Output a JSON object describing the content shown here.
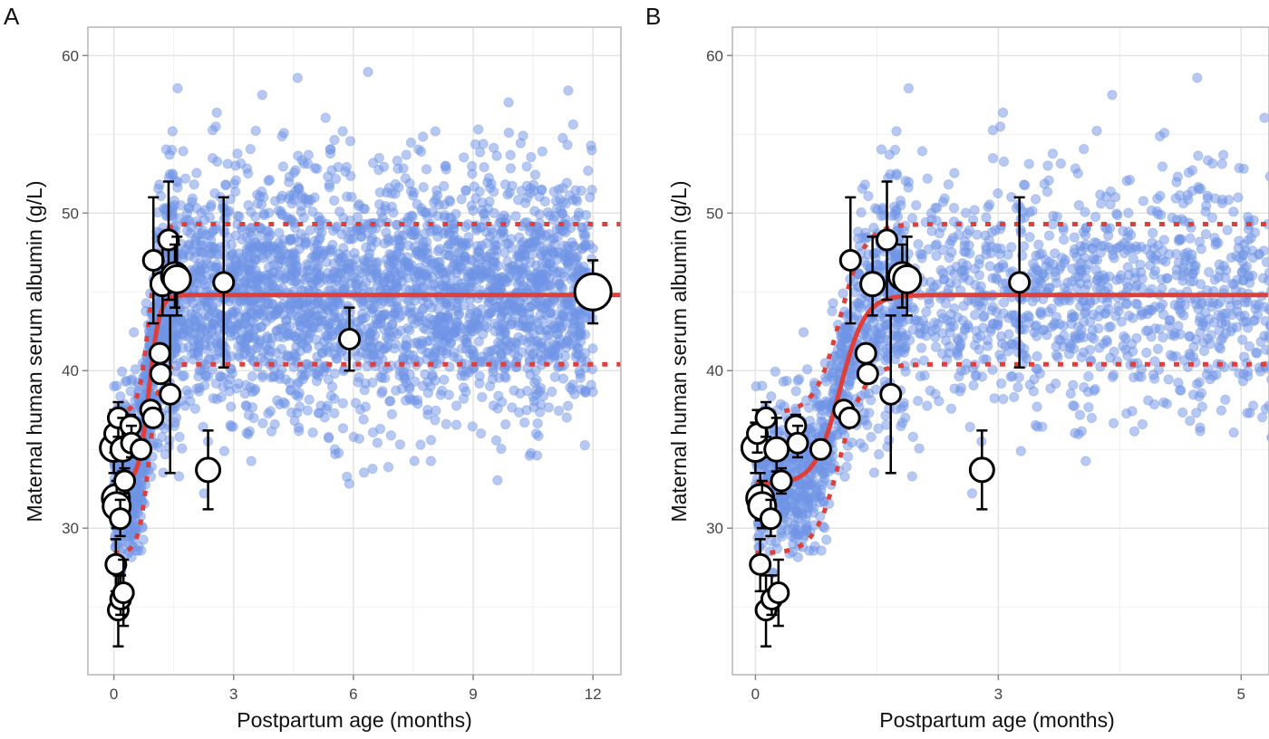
{
  "chart_data": [
    {
      "panel_label": "A",
      "type": "scatter",
      "xlabel": "Postpartum age (months)",
      "ylabel": "Maternal human serum albumin (g/L)",
      "xlim": [
        -0.65,
        12.7
      ],
      "ylim": [
        20.7,
        61.8
      ],
      "xticks": [
        {
          "value": 0,
          "label": "0"
        },
        {
          "value": 3,
          "label": "3"
        },
        {
          "value": 6,
          "label": "6"
        },
        {
          "value": 9,
          "label": "9"
        },
        {
          "value": 12,
          "label": "12"
        }
      ],
      "xminor": [
        1.5,
        4.5,
        7.5,
        10.5
      ],
      "yticks": [
        {
          "value": 30,
          "label": "30"
        },
        {
          "value": 40,
          "label": "40"
        },
        {
          "value": 50,
          "label": "50"
        },
        {
          "value": 60,
          "label": "60"
        }
      ],
      "yminor": [
        25,
        35,
        45,
        55
      ],
      "grid": true
    },
    {
      "panel_label": "B",
      "type": "scatter",
      "xlabel": "Postpartum age (months)",
      "ylabel": "Maternal human serum albumin (g/L)",
      "xlim": [
        -0.24,
        5.35
      ],
      "ylim": [
        20.7,
        61.8
      ],
      "xticks": [
        {
          "value": 0,
          "label": "0"
        },
        {
          "value": 2.53,
          "label": "3"
        },
        {
          "value": 5.06,
          "label": "5"
        }
      ],
      "xminor": [
        1.265,
        3.795
      ],
      "yticks": [
        {
          "value": 30,
          "label": "30"
        },
        {
          "value": 40,
          "label": "40"
        },
        {
          "value": 50,
          "label": "50"
        },
        {
          "value": 60,
          "label": "60"
        }
      ],
      "yminor": [
        25,
        35,
        45,
        55
      ],
      "grid": true
    }
  ],
  "model": {
    "baseline": 32.8,
    "plateau": 44.8,
    "midpoint_months": 0.88,
    "scale_months": 0.13,
    "band_upper_offset": 4.5,
    "band_lower_offset": -4.4
  },
  "individual_observations": {
    "description_n": 3600,
    "seed": 7,
    "sd": 3.9,
    "x_max": 12
  },
  "study_means": [
    {
      "x": 0.0,
      "y": 35.1,
      "lo": 33.5,
      "hi": 36.7,
      "size": 4
    },
    {
      "x": 0.02,
      "y": 36.0,
      "lo": 34.8,
      "hi": 37.5,
      "size": 2
    },
    {
      "x": 0.11,
      "y": 37.0,
      "lo": 35.8,
      "hi": 38.0,
      "size": 2
    },
    {
      "x": 0.05,
      "y": 31.9,
      "lo": 30.5,
      "hi": 33.5,
      "size": 4
    },
    {
      "x": 0.07,
      "y": 31.4,
      "lo": 30.0,
      "hi": 33.0,
      "size": 4
    },
    {
      "x": 0.16,
      "y": 30.6,
      "lo": 29.5,
      "hi": 31.8,
      "size": 2
    },
    {
      "x": 0.05,
      "y": 27.7,
      "lo": 26.0,
      "hi": 29.3,
      "size": 2
    },
    {
      "x": 0.11,
      "y": 24.8,
      "lo": 22.5,
      "hi": 27.0,
      "size": 2
    },
    {
      "x": 0.17,
      "y": 25.5,
      "lo": 24.5,
      "hi": 27.0,
      "size": 2
    },
    {
      "x": 0.24,
      "y": 25.9,
      "lo": 23.8,
      "hi": 28.0,
      "size": 2
    },
    {
      "x": 0.22,
      "y": 35.0,
      "lo": 33.6,
      "hi": 37.0,
      "size": 3
    },
    {
      "x": 0.27,
      "y": 33.0,
      "lo": 32.2,
      "hi": 33.8,
      "size": 2
    },
    {
      "x": 0.42,
      "y": 36.5,
      "lo": 35.8,
      "hi": 37.2,
      "size": 2
    },
    {
      "x": 0.44,
      "y": 35.4,
      "lo": 34.5,
      "hi": 36.5,
      "size": 2
    },
    {
      "x": 0.68,
      "y": 35.0,
      "lo": 34.4,
      "hi": 35.6,
      "size": 2
    },
    {
      "x": 0.92,
      "y": 37.5,
      "lo": 37.0,
      "hi": 38.0,
      "size": 2
    },
    {
      "x": 0.98,
      "y": 37.0,
      "lo": 36.5,
      "hi": 37.5,
      "size": 2
    },
    {
      "x": 0.99,
      "y": 47.0,
      "lo": 43.0,
      "hi": 51.0,
      "size": 2
    },
    {
      "x": 1.15,
      "y": 41.1,
      "lo": 40.6,
      "hi": 41.6,
      "size": 2
    },
    {
      "x": 1.17,
      "y": 39.8,
      "lo": 39.3,
      "hi": 40.3,
      "size": 2
    },
    {
      "x": 1.22,
      "y": 45.5,
      "lo": 43.5,
      "hi": 48.5,
      "size": 3
    },
    {
      "x": 1.41,
      "y": 38.5,
      "lo": 33.5,
      "hi": 43.5,
      "size": 2
    },
    {
      "x": 1.37,
      "y": 48.3,
      "lo": 44.5,
      "hi": 52.0,
      "size": 2
    },
    {
      "x": 1.53,
      "y": 46.0,
      "lo": 44.0,
      "hi": 48.0,
      "size": 4
    },
    {
      "x": 1.58,
      "y": 45.8,
      "lo": 43.5,
      "hi": 48.5,
      "size": 4
    },
    {
      "x": 2.36,
      "y": 33.7,
      "lo": 31.2,
      "hi": 36.2,
      "size": 3
    },
    {
      "x": 2.75,
      "y": 45.6,
      "lo": 40.2,
      "hi": 51.0,
      "size": 2
    },
    {
      "x": 5.9,
      "y": 42.0,
      "lo": 40.0,
      "hi": 44.0,
      "size": 2
    },
    {
      "x": 12.0,
      "y": 45.0,
      "lo": 43.0,
      "hi": 47.0,
      "size": 6
    }
  ],
  "colors": {
    "points": "#6f94e6",
    "curve": "#de3f3a",
    "grid": "#e4e4e4",
    "frame": "#b5b5b5"
  }
}
